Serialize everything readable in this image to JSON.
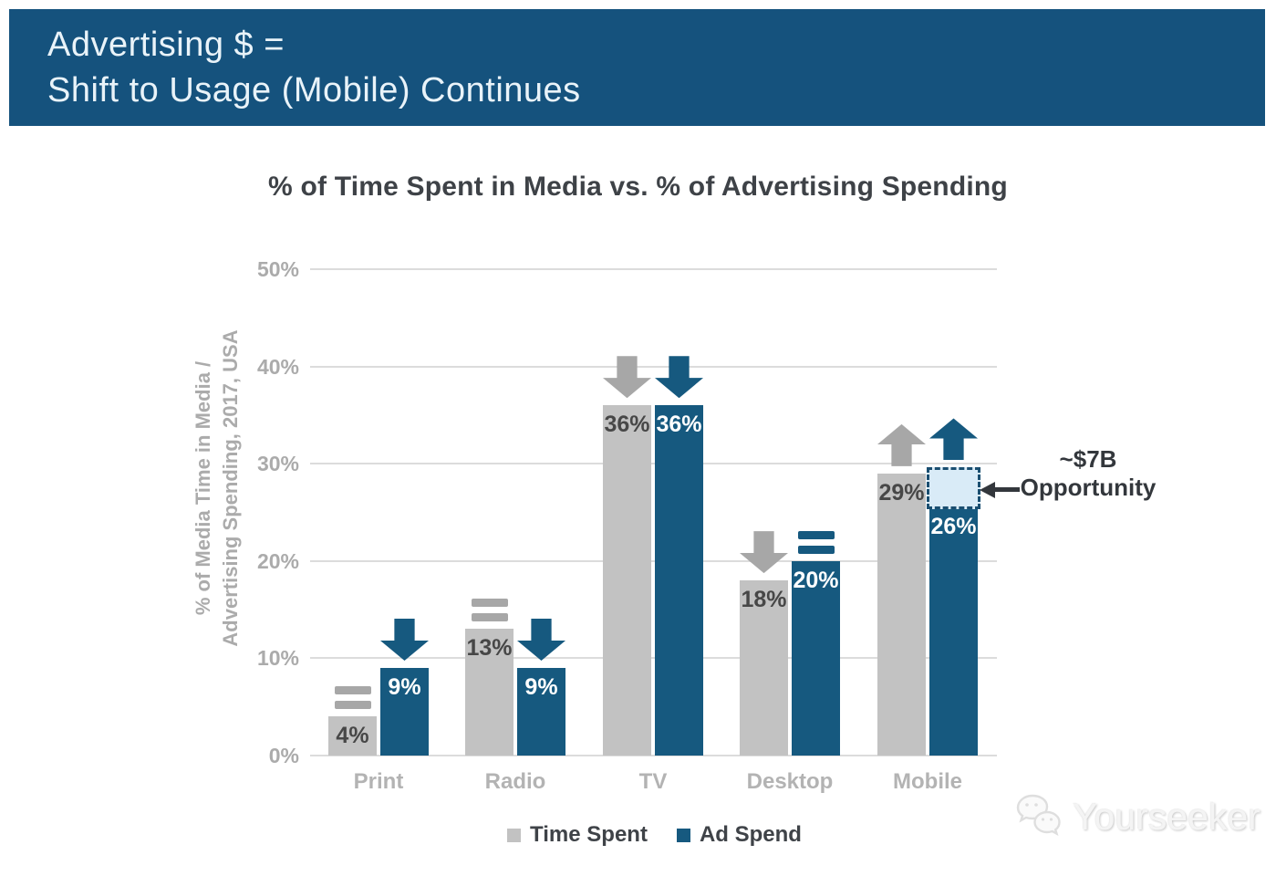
{
  "header": {
    "line1": "Advertising $ =",
    "line2": "Shift to Usage (Mobile) Continues"
  },
  "chart_data": {
    "type": "bar",
    "title": "% of Time Spent in Media vs. % of Advertising Spending",
    "ylabel_line1": "% of Media Time in Media /",
    "ylabel_line2": "Advertising Spending, 2017, USA",
    "categories": [
      "Print",
      "Radio",
      "TV",
      "Desktop",
      "Mobile"
    ],
    "series": [
      {
        "name": "Time Spent",
        "color_key": "gray",
        "values": [
          4,
          13,
          36,
          18,
          29
        ],
        "trends": [
          "flat",
          "flat",
          "down",
          "down",
          "up"
        ]
      },
      {
        "name": "Ad Spend",
        "color_key": "blue",
        "values": [
          9,
          9,
          36,
          20,
          26
        ],
        "trends": [
          "down",
          "down",
          "down",
          "flat",
          "up"
        ]
      }
    ],
    "value_labels": [
      "4%",
      "13%",
      "36%",
      "18%",
      "29%",
      "9%",
      "9%",
      "36%",
      "20%",
      "26%"
    ],
    "ylim": [
      0,
      50
    ],
    "yticks": [
      "0%",
      "10%",
      "20%",
      "30%",
      "40%",
      "50%"
    ],
    "grid": true,
    "legend_position": "bottom",
    "annotation": {
      "line1": "~$7B",
      "line2": "Opportunity",
      "category": "Mobile",
      "series": "Ad Spend",
      "box_from_pct": 26,
      "box_to_pct": 29.6
    }
  },
  "watermark": {
    "text": "Yourseeker"
  },
  "colors": {
    "banner_bg": "#15527D",
    "banner_text": "#E9F3F9",
    "bar_blue": "#16597F",
    "bar_gray": "#C2C2C2",
    "trend_gray": "#A7A7A7",
    "grid": "#DCDCDC",
    "axis_text": "#ABABAB",
    "label_dark": "#474747",
    "label_light": "#FFFFFF",
    "title_text": "#3E4247",
    "annotation_text": "#33373C",
    "box_fill": "#D9EBF7",
    "box_border": "#1A4E70",
    "watermark": "#F4F4F4"
  }
}
